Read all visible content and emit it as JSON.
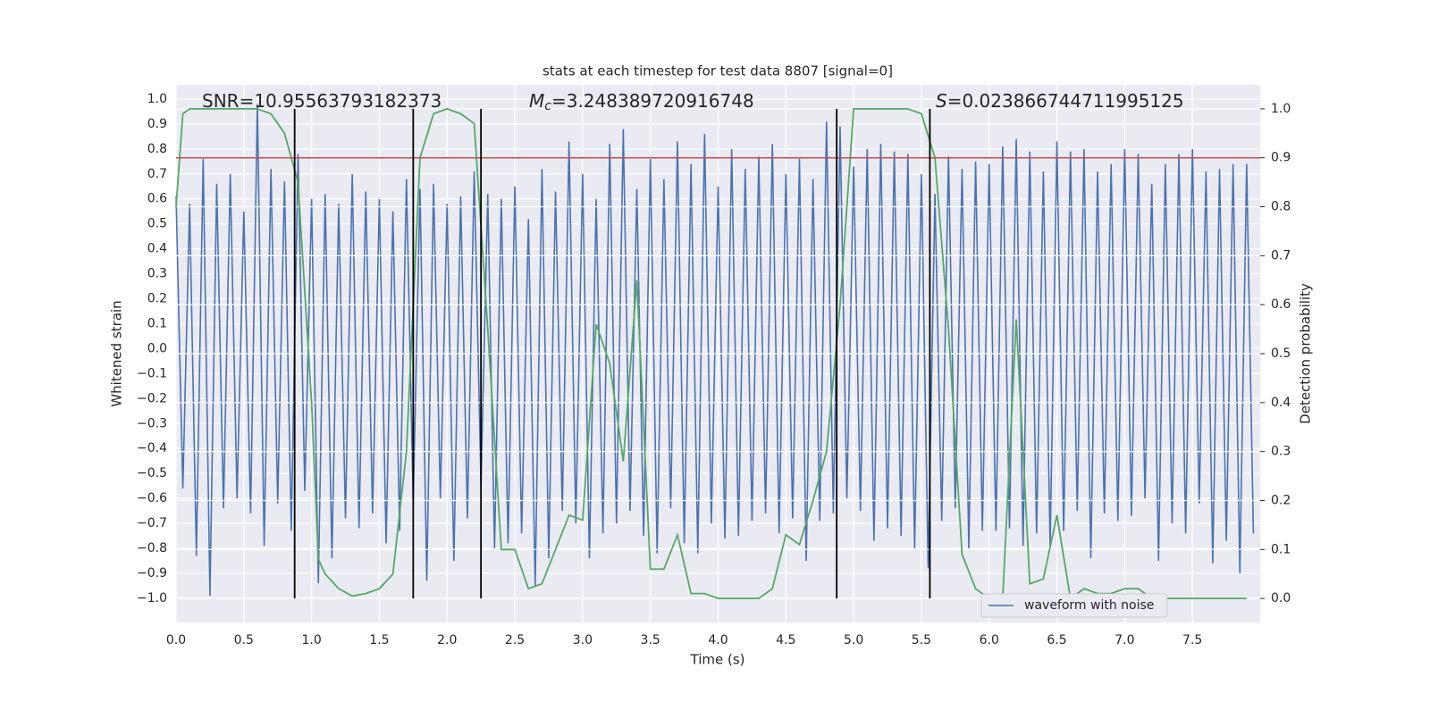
{
  "chart_data": {
    "type": "line",
    "title": "stats at each timestep for test data 8807 [signal=0]",
    "xlabel": "Time (s)",
    "ylabel": "Whitened strain",
    "y2label": "Detection probability",
    "annotations": [
      {
        "symbol": "SNR",
        "text": "=10.95563793182373"
      },
      {
        "symbol": "M",
        "subscript": "c",
        "text": "=3.248389720916748"
      },
      {
        "symbol": "S",
        "text": "=0.023866744711995125"
      }
    ],
    "xlim": [
      0,
      8.0
    ],
    "ylim": [
      -1.097,
      1.057
    ],
    "y2lim": [
      -0.049,
      1.049
    ],
    "xticks": [
      {
        "value": 0,
        "label": "0.0"
      },
      0.5,
      {
        "value": 1,
        "label": "1.0"
      },
      1.5,
      {
        "value": 2,
        "label": "2.0"
      },
      2.5,
      {
        "value": 3,
        "label": "3.0"
      },
      3.5,
      {
        "value": 4,
        "label": "4.0"
      },
      4.5,
      {
        "value": 5,
        "label": "5.0"
      },
      5.5,
      {
        "value": 6,
        "label": "6.0"
      },
      6.5,
      {
        "value": 7,
        "label": "7.0"
      },
      7.5
    ],
    "yticks": [
      {
        "value": -1,
        "label": "−1.0"
      },
      {
        "value": -0.9,
        "label": "−0.9"
      },
      {
        "value": -0.8,
        "label": "−0.8"
      },
      {
        "value": -0.7,
        "label": "−0.7"
      },
      {
        "value": -0.6,
        "label": "−0.6"
      },
      {
        "value": -0.5,
        "label": "−0.5"
      },
      {
        "value": -0.4,
        "label": "−0.4"
      },
      {
        "value": -0.3,
        "label": "−0.3"
      },
      {
        "value": -0.2,
        "label": "−0.2"
      },
      {
        "value": -0.1,
        "label": "−0.1"
      },
      {
        "value": 0,
        "label": "0.0"
      },
      0.1,
      0.2,
      0.3,
      0.4,
      0.5,
      0.6,
      0.7,
      0.8,
      0.9,
      {
        "value": 1,
        "label": "1.0"
      }
    ],
    "y2ticks": [
      {
        "value": 0,
        "label": "0.0"
      },
      0.1,
      0.2,
      0.3,
      0.4,
      0.5,
      0.6,
      0.7,
      0.8,
      0.9,
      {
        "value": 1,
        "label": "1.0"
      }
    ],
    "grid": true,
    "legend": "lower right",
    "threshold": 0.9,
    "threshold_color": "#c44e52",
    "vlines": [
      0.875,
      1.75,
      2.25,
      4.875,
      5.5625
    ],
    "vline_color": "#000000",
    "series": [
      {
        "name": "waveform with noise",
        "color": "#4c72b0",
        "x": [
          0,
          0.05,
          0.1,
          0.15,
          0.2,
          0.25,
          0.3,
          0.35,
          0.4,
          0.45,
          0.5,
          0.55,
          0.6,
          0.65,
          0.7,
          0.75,
          0.8,
          0.85,
          0.9,
          0.95,
          1,
          1.05,
          1.1,
          1.15,
          1.2,
          1.25,
          1.3,
          1.35,
          1.4,
          1.45,
          1.5,
          1.55,
          1.6,
          1.65,
          1.7,
          1.75,
          1.8,
          1.85,
          1.9,
          1.95,
          2,
          2.05,
          2.1,
          2.15,
          2.2,
          2.25,
          2.3,
          2.35,
          2.4,
          2.45,
          2.5,
          2.55,
          2.6,
          2.65,
          2.7,
          2.75,
          2.8,
          2.85,
          2.9,
          2.95,
          3,
          3.05,
          3.1,
          3.15,
          3.2,
          3.25,
          3.3,
          3.35,
          3.4,
          3.45,
          3.5,
          3.55,
          3.6,
          3.65,
          3.7,
          3.75,
          3.8,
          3.85,
          3.9,
          3.95,
          4,
          4.05,
          4.1,
          4.15,
          4.2,
          4.25,
          4.3,
          4.35,
          4.4,
          4.45,
          4.5,
          4.55,
          4.6,
          4.65,
          4.7,
          4.75,
          4.8,
          4.85,
          4.9,
          4.95,
          5,
          5.05,
          5.1,
          5.15,
          5.2,
          5.25,
          5.3,
          5.35,
          5.4,
          5.45,
          5.5,
          5.55,
          5.6,
          5.65,
          5.7,
          5.75,
          5.8,
          5.85,
          5.9,
          5.95,
          6,
          6.05,
          6.1,
          6.15,
          6.2,
          6.25,
          6.3,
          6.35,
          6.4,
          6.45,
          6.5,
          6.55,
          6.6,
          6.65,
          6.7,
          6.75,
          6.8,
          6.85,
          6.9,
          6.95,
          7,
          7.05,
          7.1,
          7.15,
          7.2,
          7.25,
          7.3,
          7.35,
          7.4,
          7.45,
          7.5,
          7.55,
          7.6,
          7.65,
          7.7,
          7.75,
          7.8,
          7.85,
          7.9,
          7.95
        ],
        "values": [
          0.61,
          -0.56,
          0.58,
          -0.83,
          0.76,
          -0.99,
          0.66,
          -0.64,
          0.7,
          -0.6,
          0.55,
          -0.66,
          0.98,
          -0.79,
          0.72,
          -0.62,
          0.67,
          -0.73,
          0.78,
          -0.57,
          0.6,
          -0.94,
          0.62,
          -0.84,
          0.58,
          -0.68,
          0.7,
          -0.72,
          0.63,
          -0.66,
          0.6,
          -0.78,
          0.55,
          -0.73,
          0.68,
          -0.62,
          0.64,
          -0.93,
          0.66,
          -0.6,
          0.58,
          -0.85,
          0.61,
          -0.68,
          0.71,
          -0.55,
          0.62,
          -0.8,
          0.6,
          -0.78,
          0.65,
          -0.74,
          0.52,
          -0.95,
          0.72,
          -0.84,
          0.63,
          -0.65,
          0.83,
          -0.7,
          0.7,
          -0.84,
          0.6,
          -0.74,
          0.82,
          -0.7,
          0.88,
          -0.65,
          0.64,
          -0.75,
          0.76,
          -0.82,
          0.68,
          -0.64,
          0.83,
          -0.78,
          0.74,
          -0.82,
          0.86,
          -0.7,
          0.65,
          -0.76,
          0.8,
          -0.75,
          0.72,
          -0.69,
          0.77,
          -0.66,
          0.82,
          -0.74,
          0.7,
          -0.68,
          0.76,
          -0.85,
          0.68,
          -0.69,
          0.91,
          -0.66,
          0.89,
          -0.6,
          0.73,
          -0.65,
          0.8,
          -0.77,
          0.82,
          -0.72,
          0.79,
          -0.75,
          0.78,
          -0.8,
          0.7,
          -0.88,
          0.62,
          -0.69,
          0.77,
          -0.64,
          0.72,
          -0.8,
          0.75,
          -0.73,
          0.74,
          -0.73,
          0.81,
          -0.72,
          0.84,
          -0.79,
          0.79,
          -0.74,
          0.71,
          -0.79,
          0.83,
          -0.73,
          0.79,
          -0.65,
          0.8,
          -0.84,
          0.71,
          -0.66,
          0.74,
          -0.69,
          0.8,
          -0.67,
          0.78,
          -0.6,
          0.66,
          -0.85,
          0.74,
          -0.7,
          0.78,
          -0.74,
          0.8,
          -0.62,
          0.71,
          -0.86,
          0.72,
          -0.77,
          0.74,
          -0.9,
          0.74,
          -0.74
        ]
      },
      {
        "color": "#55a868",
        "axis": "y2",
        "x": [
          0,
          0.05,
          0.1,
          0.2,
          0.3,
          0.4,
          0.5,
          0.6,
          0.7,
          0.8,
          0.9,
          1,
          1.05,
          1.1,
          1.2,
          1.3,
          1.4,
          1.5,
          1.6,
          1.7,
          1.8,
          1.9,
          2,
          2.1,
          2.2,
          2.3,
          2.4,
          2.5,
          2.6,
          2.7,
          2.8,
          2.9,
          3,
          3.1,
          3.2,
          3.3,
          3.4,
          3.5,
          3.6,
          3.7,
          3.8,
          3.9,
          4,
          4.1,
          4.2,
          4.3,
          4.4,
          4.5,
          4.6,
          4.7,
          4.8,
          4.9,
          5,
          5.1,
          5.2,
          5.3,
          5.4,
          5.5,
          5.6,
          5.7,
          5.8,
          5.9,
          6,
          6.1,
          6.2,
          6.3,
          6.4,
          6.5,
          6.6,
          6.7,
          6.8,
          6.9,
          7,
          7.1,
          7.2,
          7.3,
          7.4,
          7.5,
          7.6,
          7.7,
          7.8,
          7.9
        ],
        "values": [
          0.8,
          0.99,
          1.0,
          1.0,
          1.0,
          1.0,
          1.0,
          1.0,
          0.99,
          0.95,
          0.85,
          0.4,
          0.08,
          0.05,
          0.02,
          0.005,
          0.01,
          0.02,
          0.05,
          0.3,
          0.9,
          0.99,
          1.0,
          0.99,
          0.97,
          0.55,
          0.1,
          0.1,
          0.02,
          0.03,
          0.1,
          0.17,
          0.16,
          0.56,
          0.48,
          0.28,
          0.65,
          0.06,
          0.06,
          0.13,
          0.01,
          0.01,
          0.0,
          0.0,
          0.0,
          0.0,
          0.02,
          0.13,
          0.11,
          0.2,
          0.3,
          0.6,
          1.0,
          1.0,
          1.0,
          1.0,
          1.0,
          0.99,
          0.9,
          0.55,
          0.09,
          0.02,
          0.0,
          0.0,
          0.57,
          0.03,
          0.04,
          0.17,
          0.0,
          0.02,
          0.01,
          0.01,
          0.02,
          0.02,
          0.0,
          0.0,
          0.0,
          0.0,
          0.0,
          0.0,
          0.0,
          0.0
        ]
      }
    ]
  }
}
